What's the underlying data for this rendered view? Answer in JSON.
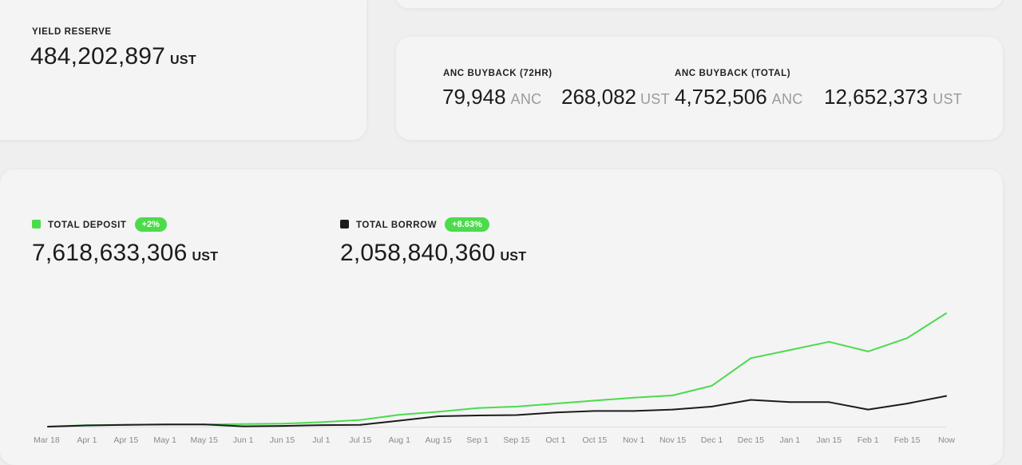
{
  "yield_reserve": {
    "label": "YIELD RESERVE",
    "value": "484,202,897",
    "unit": "UST"
  },
  "buyback_72hr": {
    "label": "ANC BUYBACK (72HR)",
    "anc_value": "79,948",
    "anc_unit": "ANC",
    "ust_value": "268,082",
    "ust_unit": "UST"
  },
  "buyback_total": {
    "label": "ANC BUYBACK (TOTAL)",
    "anc_value": "4,752,506",
    "anc_unit": "ANC",
    "ust_value": "12,652,373",
    "ust_unit": "UST"
  },
  "total_deposit": {
    "label": "TOTAL DEPOSIT",
    "badge": "+2%",
    "value": "7,618,633,306",
    "unit": "UST"
  },
  "total_borrow": {
    "label": "TOTAL BORROW",
    "badge": "+8.63%",
    "value": "2,058,840,360",
    "unit": "UST"
  },
  "colors": {
    "deposit": "#4bdb4b",
    "borrow": "#1c1c1c",
    "badge": "#4bdb4b",
    "axis_text": "#8a8a8a"
  },
  "chart_data": {
    "type": "line",
    "x": [
      "Mar 18",
      "Apr 1",
      "Apr 15",
      "May 1",
      "May 15",
      "Jun 1",
      "Jun 15",
      "Jul 1",
      "Jul 15",
      "Aug 1",
      "Aug 15",
      "Sep 1",
      "Sep 15",
      "Oct 1",
      "Oct 15",
      "Nov 1",
      "Nov 15",
      "Dec 1",
      "Dec 15",
      "Jan 1",
      "Jan 15",
      "Feb 1",
      "Feb 15",
      "Now"
    ],
    "series": [
      {
        "name": "TOTAL DEPOSIT",
        "color": "#4bdb4b",
        "values": [
          0.0,
          0.1,
          0.12,
          0.15,
          0.15,
          0.17,
          0.2,
          0.3,
          0.45,
          0.8,
          1.0,
          1.25,
          1.35,
          1.55,
          1.75,
          1.95,
          2.1,
          2.75,
          4.6,
          5.15,
          5.7,
          5.05,
          5.95,
          7.62
        ]
      },
      {
        "name": "TOTAL BORROW",
        "color": "#1c1c1c",
        "values": [
          0.0,
          0.08,
          0.12,
          0.15,
          0.15,
          0.02,
          0.05,
          0.1,
          0.12,
          0.4,
          0.7,
          0.75,
          0.78,
          0.95,
          1.05,
          1.05,
          1.15,
          1.35,
          1.8,
          1.65,
          1.65,
          1.15,
          1.55,
          2.06
        ]
      }
    ],
    "ylim": [
      0,
      8
    ],
    "grid": false,
    "legend": "top-left"
  }
}
